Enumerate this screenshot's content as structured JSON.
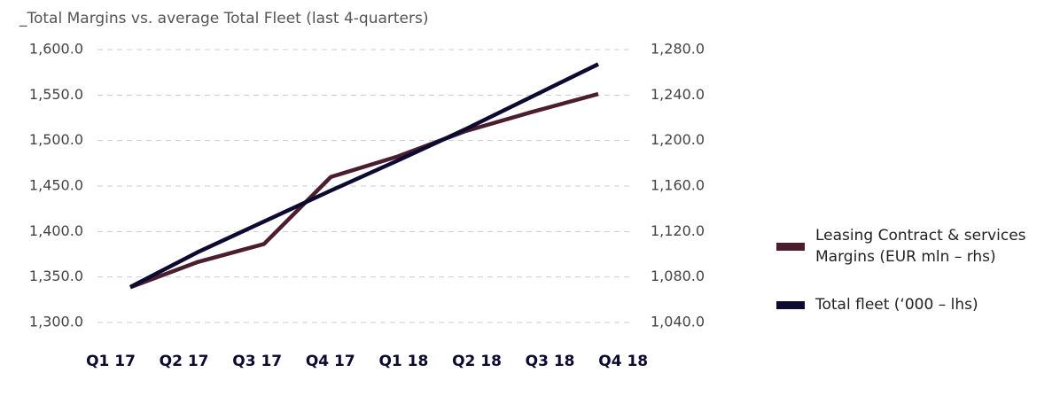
{
  "chart_data": {
    "type": "line",
    "title": "_Total Margins vs. average Total Fleet (last 4-quarters)",
    "categories": [
      "Q1 17",
      "Q2 17",
      "Q3 17",
      "Q4 17",
      "Q1 18",
      "Q2 18",
      "Q3 18",
      "Q4 18"
    ],
    "series": [
      {
        "name": "Leasing Contract & services Margins (EUR mln – rhs)",
        "color": "#4a1e2e",
        "axis": "y2",
        "values": [
          1071,
          1093,
          1109,
          1168,
          1186,
          1208,
          1225,
          1241
        ]
      },
      {
        "name": "Total fleet (‘000 – lhs)",
        "color": "#0c0a30",
        "values": [
          1339,
          1377,
          1411,
          1445,
          1478,
          1512,
          1548,
          1584
        ]
      }
    ],
    "ylim": [
      1300,
      1600
    ],
    "yticks": [
      {
        "value": 1300,
        "label": "1,300.0"
      },
      {
        "value": 1350,
        "label": "1,350.0"
      },
      {
        "value": 1400,
        "label": "1,400.0"
      },
      {
        "value": 1450,
        "label": "1,450.0"
      },
      {
        "value": 1500,
        "label": "1,500.0"
      },
      {
        "value": 1550,
        "label": "1,550.0"
      },
      {
        "value": 1600,
        "label": "1,600.0"
      }
    ],
    "y2lim": [
      1040,
      1280
    ],
    "y2ticks": [
      {
        "value": 1040,
        "label": "1,040.0"
      },
      {
        "value": 1080,
        "label": "1,080.0"
      },
      {
        "value": 1120,
        "label": "1,120.0"
      },
      {
        "value": 1160,
        "label": "1,160.0"
      },
      {
        "value": 1200,
        "label": "1,200.0"
      },
      {
        "value": 1240,
        "label": "1,240.0"
      },
      {
        "value": 1280,
        "label": "1,280.0"
      }
    ],
    "grid": true
  }
}
